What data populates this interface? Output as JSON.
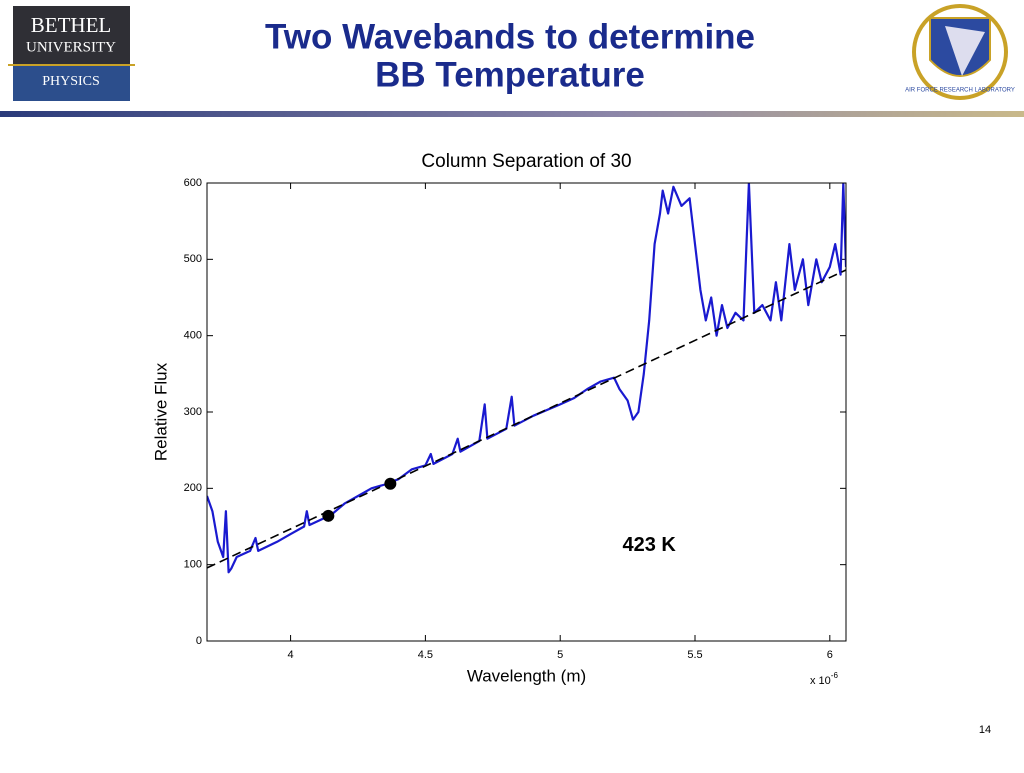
{
  "header": {
    "logo_left": {
      "line1": "BETHEL",
      "line2": "UNIVERSITY",
      "line3": "PHYSICS"
    },
    "title_line1": "Two Wavebands to determine",
    "title_line2": "BB Temperature",
    "logo_right": {
      "text": "AIR FORCE RESEARCH LABORATORY"
    }
  },
  "page_number": "14",
  "chart_data": {
    "type": "line",
    "title": "Column Separation of 30",
    "x_label": "Wavelength (m)",
    "x_multiplier": {
      "base": "x 10",
      "exponent": "-6"
    },
    "y_label": "Relative Flux",
    "annotation": "423 K",
    "annotation_at": [
      5.33,
      125
    ],
    "xlim": [
      3.69,
      6.06
    ],
    "ylim": [
      0,
      600
    ],
    "xticks": [
      4,
      4.5,
      5,
      5.5,
      6
    ],
    "yticks": [
      0,
      100,
      200,
      300,
      400,
      500,
      600
    ],
    "grid": false,
    "series": [
      {
        "type": "line",
        "color": "#1a1ad0",
        "dash": false,
        "x": [
          3.69,
          3.71,
          3.73,
          3.75,
          3.76,
          3.77,
          3.78,
          3.8,
          3.85,
          3.87,
          3.88,
          3.95,
          4.0,
          4.05,
          4.06,
          4.07,
          4.15,
          4.2,
          4.25,
          4.3,
          4.35,
          4.4,
          4.45,
          4.5,
          4.52,
          4.53,
          4.6,
          4.62,
          4.63,
          4.7,
          4.72,
          4.73,
          4.8,
          4.82,
          4.83,
          4.9,
          5.0,
          5.05,
          5.1,
          5.15,
          5.2,
          5.22,
          5.25,
          5.27,
          5.29,
          5.31,
          5.33,
          5.35,
          5.37,
          5.38,
          5.4,
          5.42,
          5.45,
          5.48,
          5.5,
          5.52,
          5.54,
          5.56,
          5.58,
          5.6,
          5.62,
          5.65,
          5.68,
          5.7,
          5.72,
          5.75,
          5.78,
          5.8,
          5.82,
          5.85,
          5.87,
          5.9,
          5.92,
          5.95,
          5.97,
          6.0,
          6.02,
          6.04,
          6.05,
          6.06
        ],
        "values": [
          190,
          170,
          130,
          110,
          170,
          90,
          95,
          110,
          118,
          135,
          118,
          130,
          140,
          150,
          170,
          152,
          165,
          180,
          190,
          200,
          205,
          212,
          225,
          230,
          245,
          232,
          245,
          265,
          248,
          262,
          310,
          265,
          278,
          320,
          282,
          295,
          310,
          318,
          330,
          340,
          345,
          330,
          315,
          290,
          300,
          350,
          420,
          520,
          560,
          590,
          560,
          595,
          570,
          580,
          520,
          460,
          420,
          450,
          400,
          440,
          410,
          430,
          420,
          600,
          430,
          440,
          420,
          470,
          420,
          520,
          460,
          500,
          440,
          500,
          470,
          490,
          520,
          480,
          600,
          490
        ]
      },
      {
        "type": "line",
        "color": "#000000",
        "dash": true,
        "x": [
          3.69,
          6.06
        ],
        "values": [
          95.7,
          486
        ]
      },
      {
        "type": "scatter",
        "color": "#000000",
        "x": [
          4.14,
          4.37
        ],
        "values": [
          164,
          206
        ]
      }
    ]
  }
}
